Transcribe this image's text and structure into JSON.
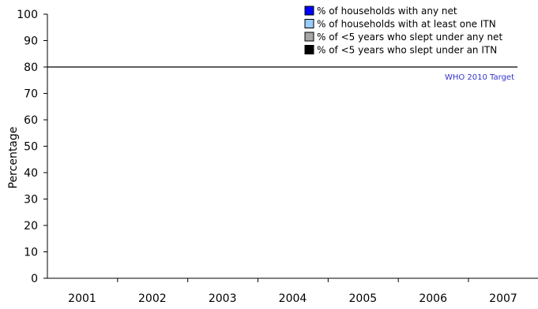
{
  "chart_data": {
    "type": "bar",
    "title": "",
    "xlabel": "",
    "ylabel": "Percentage",
    "categories": [
      "2001",
      "2002",
      "2003",
      "2004",
      "2005",
      "2006",
      "2007"
    ],
    "ylim": [
      0,
      100
    ],
    "yticks": [
      0,
      10,
      20,
      30,
      40,
      50,
      60,
      70,
      80,
      90,
      100
    ],
    "series": [
      {
        "name": "% of households with any net",
        "color": "#0000ff",
        "values": [
          null,
          null,
          null,
          null,
          null,
          null,
          null
        ]
      },
      {
        "name": "% of households with at least one ITN",
        "color": "#99ccff",
        "values": [
          null,
          null,
          null,
          null,
          null,
          null,
          null
        ]
      },
      {
        "name": "% of <5 years who slept under any net",
        "color": "#a6a6a6",
        "values": [
          null,
          null,
          null,
          null,
          null,
          null,
          null
        ]
      },
      {
        "name": "% of <5 years who slept under an ITN",
        "color": "#000000",
        "values": [
          null,
          null,
          null,
          null,
          null,
          null,
          null
        ]
      }
    ],
    "legend_position": "top-right",
    "grid": false,
    "reference_line": {
      "value": 80,
      "label": "WHO 2010 Target",
      "label_color": "#3333cc",
      "line_color": "#000000"
    }
  }
}
